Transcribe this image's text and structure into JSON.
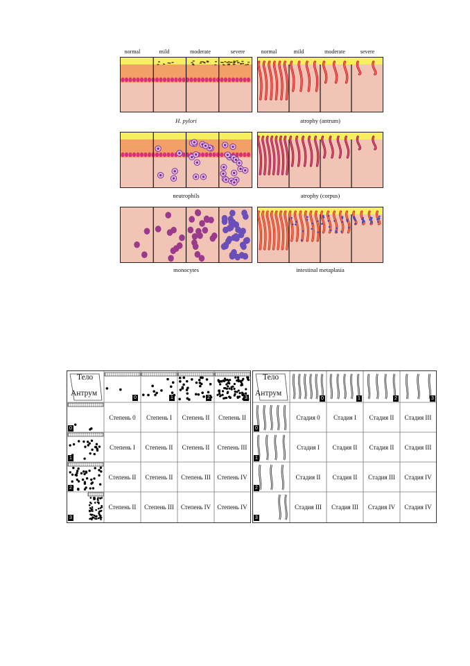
{
  "figure_top": {
    "severity_headers": [
      "normal",
      "mild",
      "moderate",
      "severe"
    ],
    "panels": [
      {
        "caption_pre": "",
        "caption_italic": "H. pylori",
        "caption_post": ""
      },
      {
        "caption_pre": "atrophy (antrum)",
        "caption_italic": "",
        "caption_post": ""
      },
      {
        "caption_pre": "neutrophils",
        "caption_italic": "",
        "caption_post": ""
      },
      {
        "caption_pre": "atrophy (corpus)",
        "caption_italic": "",
        "caption_post": ""
      },
      {
        "caption_pre": "monocytes",
        "caption_italic": "",
        "caption_post": ""
      },
      {
        "caption_pre": "intestinal metaplasia",
        "caption_italic": "",
        "caption_post": ""
      }
    ]
  },
  "table_gastritis": {
    "corner_top": "Тело",
    "corner_bottom": "Антрум",
    "col_index": [
      "0",
      "1",
      "2",
      "3"
    ],
    "row_index": [
      "0",
      "1",
      "2",
      "3"
    ],
    "rows": [
      [
        "Степень 0",
        "Степень I",
        "Степень II",
        "Степень II"
      ],
      [
        "Степень I",
        "Степень II",
        "Степень II",
        "Степень III"
      ],
      [
        "Степень II",
        "Степень II",
        "Степень III",
        "Степень IV"
      ],
      [
        "Степень II",
        "Степень III",
        "Степень IV",
        "Степень IV"
      ]
    ]
  },
  "table_atrophy": {
    "corner_top": "Тело",
    "corner_bottom": "Антрум",
    "col_index": [
      "0",
      "1",
      "2",
      "3"
    ],
    "row_index": [
      "0",
      "1",
      "2",
      "3"
    ],
    "rows": [
      [
        "Стадия 0",
        "Стадия I",
        "Стадия II",
        "Стадия III"
      ],
      [
        "Стадия I",
        "Стадия II",
        "Стадия II",
        "Стадия III"
      ],
      [
        "Стадия II",
        "Стадия II",
        "Стадия III",
        "Стадия IV"
      ],
      [
        "Стадия III",
        "Стадия III",
        "Стадия IV",
        "Стадия IV"
      ]
    ]
  }
}
